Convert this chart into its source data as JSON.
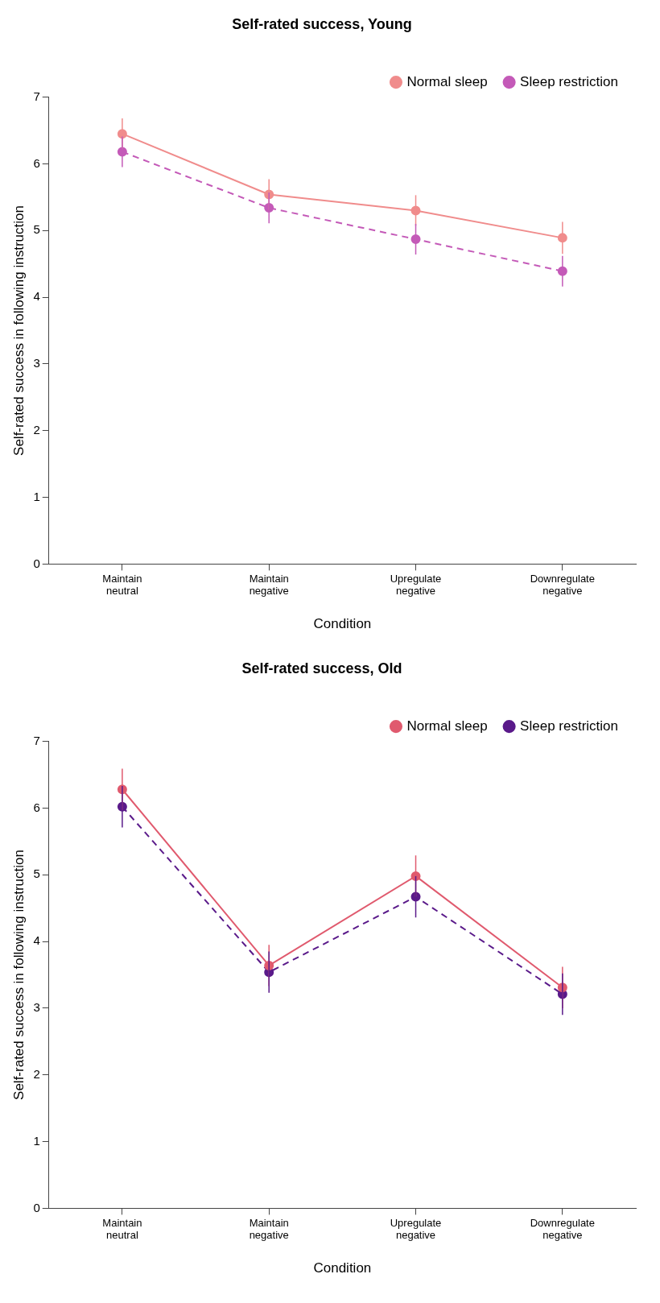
{
  "chart_data": [
    {
      "type": "line",
      "title": "Self-rated success, Young",
      "xlabel": "Condition",
      "ylabel": "Self-rated success in following instruction",
      "categories": [
        "Maintain\nneutral",
        "Maintain\nnegative",
        "Upregulate\nnegative",
        "Downregulate\nnegative"
      ],
      "ylim": [
        0,
        7
      ],
      "yticks": [
        0,
        1,
        2,
        3,
        4,
        5,
        6,
        7
      ],
      "grid": false,
      "legend": "top right",
      "marker": "circle",
      "series": [
        {
          "name": "Normal sleep",
          "color": "#f08c8c",
          "line_style": "solid",
          "values": [
            6.45,
            5.54,
            5.3,
            4.89
          ],
          "errors": [
            0.23,
            0.23,
            0.23,
            0.24
          ]
        },
        {
          "name": "Sleep restriction",
          "color": "#c45ab8",
          "line_style": "dashed",
          "values": [
            6.18,
            5.34,
            4.87,
            4.39
          ],
          "errors": [
            0.23,
            0.23,
            0.23,
            0.23
          ]
        }
      ]
    },
    {
      "type": "line",
      "title": "Self-rated success, Old",
      "xlabel": "Condition",
      "ylabel": "Self-rated success in following instruction",
      "categories": [
        "Maintain\nneutral",
        "Maintain\nnegative",
        "Upregulate\nnegative",
        "Downregulate\nnegative"
      ],
      "ylim": [
        0,
        7
      ],
      "yticks": [
        0,
        1,
        2,
        3,
        4,
        5,
        6,
        7
      ],
      "grid": false,
      "legend": "top right",
      "marker": "circle",
      "series": [
        {
          "name": "Normal sleep",
          "color": "#e05a6e",
          "line_style": "solid",
          "values": [
            6.28,
            3.64,
            4.98,
            3.31
          ],
          "errors": [
            0.31,
            0.31,
            0.31,
            0.31
          ]
        },
        {
          "name": "Sleep restriction",
          "color": "#5a1a8a",
          "line_style": "dashed",
          "values": [
            6.02,
            3.54,
            4.67,
            3.21
          ],
          "errors": [
            0.31,
            0.31,
            0.31,
            0.31
          ]
        }
      ]
    }
  ]
}
